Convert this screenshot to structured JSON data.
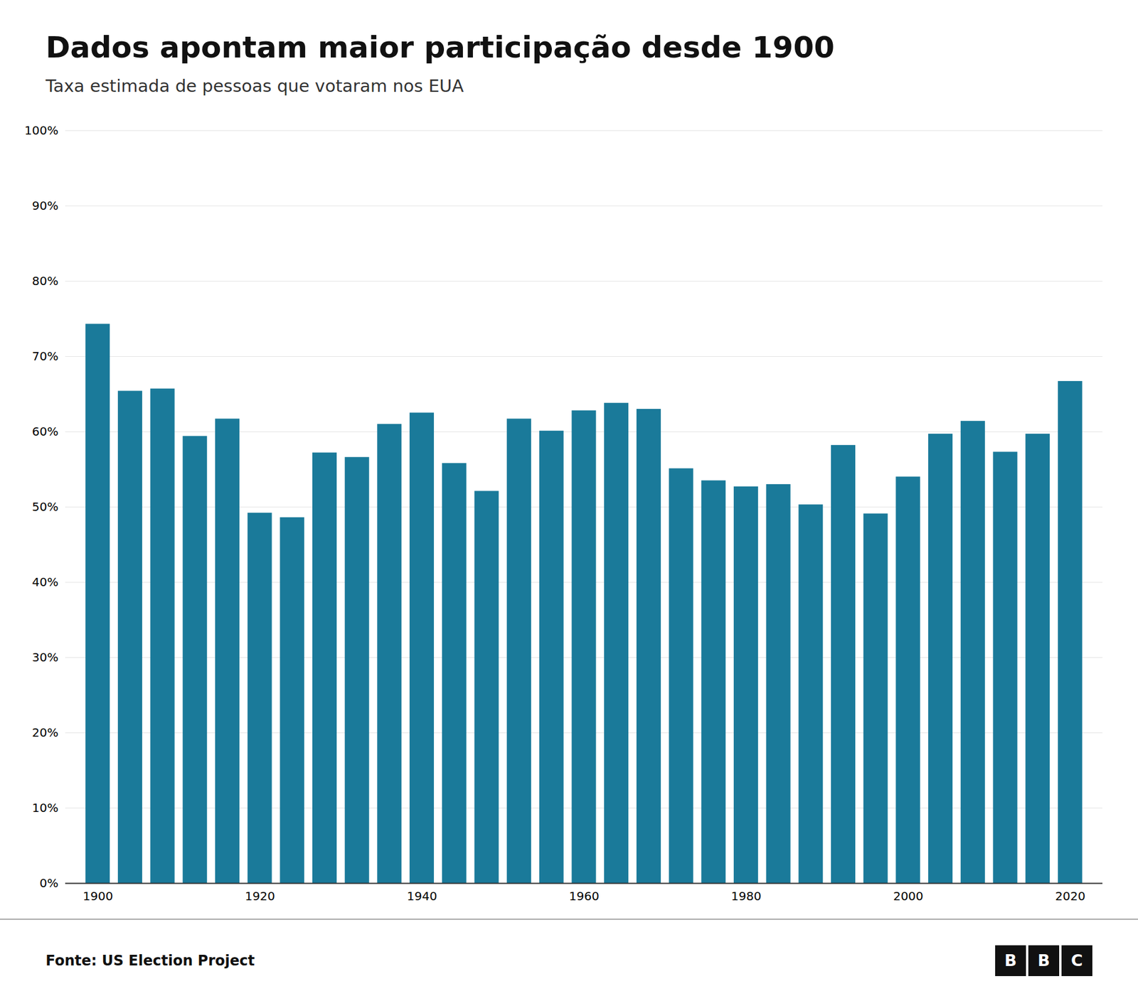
{
  "chart_data": {
    "type": "bar",
    "title": "Dados apontam maior participação desde 1900",
    "subtitle": "Taxa estimada de pessoas que votaram nos EUA",
    "source": "Fonte: US Election Project",
    "logo": "BBC",
    "x": [
      1900,
      1904,
      1908,
      1912,
      1916,
      1920,
      1924,
      1928,
      1932,
      1936,
      1940,
      1944,
      1948,
      1952,
      1956,
      1960,
      1964,
      1968,
      1972,
      1976,
      1980,
      1984,
      1988,
      1992,
      1996,
      2000,
      2004,
      2008,
      2012,
      2016,
      2020
    ],
    "values": [
      0.743,
      0.654,
      0.657,
      0.594,
      0.617,
      0.492,
      0.486,
      0.572,
      0.566,
      0.61,
      0.625,
      0.558,
      0.521,
      0.617,
      0.601,
      0.628,
      0.638,
      0.63,
      0.551,
      0.535,
      0.527,
      0.53,
      0.503,
      0.582,
      0.491,
      0.54,
      0.597,
      0.614,
      0.573,
      0.597,
      0.667
    ],
    "color": "#1a7a9a",
    "xlim": [
      1896,
      2024
    ],
    "xticks": [
      1900,
      1920,
      1940,
      1960,
      1980,
      2000,
      2020
    ],
    "ylim": [
      0,
      1.0
    ],
    "yticks": [
      {
        "value": 0.0,
        "label": "0%"
      },
      {
        "value": 0.1,
        "label": "10%"
      },
      {
        "value": 0.2,
        "label": "20%"
      },
      {
        "value": 0.3,
        "label": "30%"
      },
      {
        "value": 0.4,
        "label": "40%"
      },
      {
        "value": 0.5,
        "label": "50%"
      },
      {
        "value": 0.6,
        "label": "60%"
      },
      {
        "value": 0.7,
        "label": "70%"
      },
      {
        "value": 0.8,
        "label": "80%"
      },
      {
        "value": 0.9,
        "label": "90%"
      },
      {
        "value": 1.0,
        "label": "100%"
      }
    ],
    "grid": true
  }
}
